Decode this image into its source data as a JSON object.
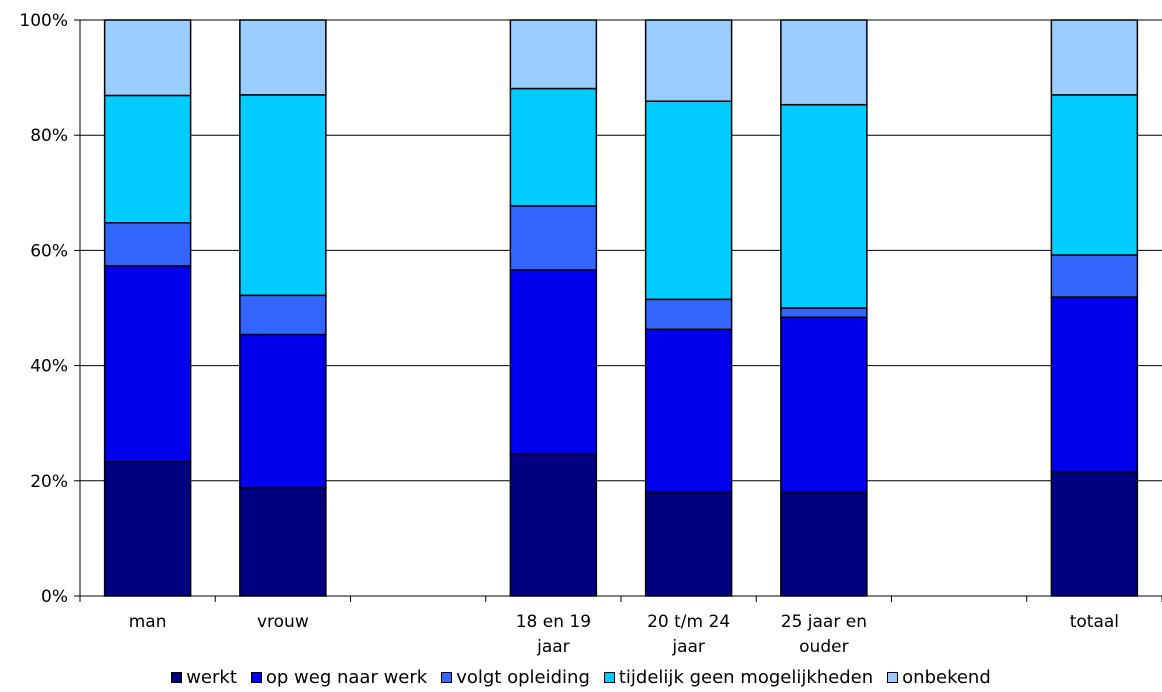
{
  "chart_data": {
    "type": "bar",
    "stacked": true,
    "percent": true,
    "categories": [
      [
        "man"
      ],
      [
        "vrouw"
      ],
      [],
      [
        "18 en 19",
        "jaar"
      ],
      [
        "20 t/m 24",
        "jaar"
      ],
      [
        "25 jaar en",
        "ouder"
      ],
      [],
      [
        "totaal"
      ]
    ],
    "ylim": [
      0,
      100
    ],
    "yticks": [
      "0%",
      "20%",
      "40%",
      "60%",
      "80%",
      "100%"
    ],
    "grid": true,
    "legend_position": "bottom",
    "series": [
      {
        "name": "werkt",
        "color": "#000080",
        "values": [
          23.3,
          18.8,
          null,
          24.6,
          18.0,
          18.0,
          null,
          21.5
        ]
      },
      {
        "name": "op weg naar werk",
        "color": "#0000ee",
        "values": [
          34.0,
          26.6,
          null,
          32.0,
          28.3,
          30.4,
          null,
          30.4
        ]
      },
      {
        "name": "volgt opleiding",
        "color": "#3366ff",
        "values": [
          7.5,
          6.8,
          null,
          11.1,
          5.2,
          1.6,
          null,
          7.3
        ]
      },
      {
        "name": "tijdelijk geen mogelijkheden",
        "color": "#00ccff",
        "values": [
          22.1,
          34.8,
          null,
          20.4,
          34.4,
          35.3,
          null,
          27.8
        ]
      },
      {
        "name": "onbekend",
        "color": "#99ccff",
        "values": [
          13.1,
          13.0,
          null,
          11.9,
          14.1,
          14.7,
          null,
          13.0
        ]
      }
    ]
  }
}
